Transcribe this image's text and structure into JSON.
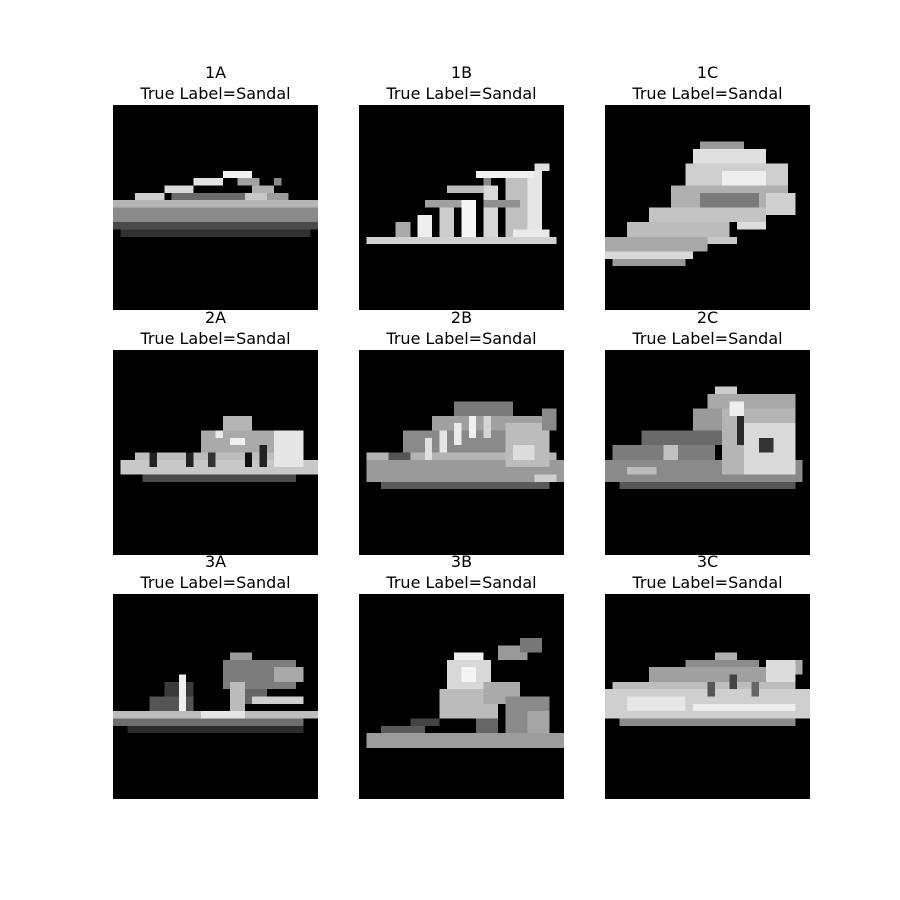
{
  "figure": {
    "panels": [
      {
        "id": "1A",
        "title": "True Label=Sandal",
        "shape": "thong-sandal"
      },
      {
        "id": "1B",
        "title": "True Label=Sandal",
        "shape": "strappy-sandal"
      },
      {
        "id": "1C",
        "title": "True Label=Sandal",
        "shape": "slanted-sandal"
      },
      {
        "id": "2A",
        "title": "True Label=Sandal",
        "shape": "low-sandal"
      },
      {
        "id": "2B",
        "title": "True Label=Sandal",
        "shape": "shoe-like-sandal"
      },
      {
        "id": "2C",
        "title": "True Label=Sandal",
        "shape": "boot-like-sandal"
      },
      {
        "id": "3A",
        "title": "True Label=Sandal",
        "shape": "heel-strap-sandal"
      },
      {
        "id": "3B",
        "title": "True Label=Sandal",
        "shape": "wedge-sandal"
      },
      {
        "id": "3C",
        "title": "True Label=Sandal",
        "shape": "sneaker-like-sandal"
      }
    ]
  },
  "colors": {
    "background": "#ffffff",
    "image_background": "#000000",
    "text": "#000000"
  }
}
